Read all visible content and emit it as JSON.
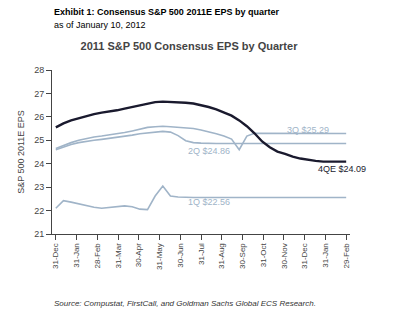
{
  "chart_data": {
    "type": "line",
    "exhibit_title": "Exhibit 1: Consensus S&P 500 2011E EPS by quarter",
    "subtitle": "as of January 10, 2012",
    "title": "2011 S&P 500 Consensus EPS by Quarter",
    "source": "Source: Compustat, FirstCall, and Goldman Sachs Global ECS Research.",
    "ylabel": "S&P 500 2011E EPS",
    "x": [
      0,
      1,
      2,
      3,
      4,
      5,
      6,
      7,
      8,
      9,
      10,
      11,
      12,
      13,
      14,
      15,
      16,
      17,
      18,
      19,
      20,
      21,
      22,
      23,
      24,
      25,
      26,
      27,
      28,
      29,
      30,
      31,
      32,
      33,
      34,
      35,
      36,
      37,
      38
    ],
    "xlim": [
      -0.5,
      38.5
    ],
    "xticks": [
      {
        "value": 0,
        "label": "31-Dec"
      },
      {
        "value": 2.7142857142857144,
        "label": "31-Jan"
      },
      {
        "value": 5.428571428571429,
        "label": "28-Feb"
      },
      {
        "value": 8.142857142857142,
        "label": "31-Mar"
      },
      {
        "value": 10.857142857142858,
        "label": "30-Apr"
      },
      {
        "value": 13.571428571428571,
        "label": "31-May"
      },
      {
        "value": 16.285714285714285,
        "label": "30-Jun"
      },
      {
        "value": 19.0,
        "label": "31-Jul"
      },
      {
        "value": 21.714285714285715,
        "label": "31-Aug"
      },
      {
        "value": 24.428571428571427,
        "label": "30-Sep"
      },
      {
        "value": 27.142857142857142,
        "label": "31-Oct"
      },
      {
        "value": 29.857142857142858,
        "label": "30-Nov"
      },
      {
        "value": 32.57142857142857,
        "label": "31-Dec"
      },
      {
        "value": 35.285714285714285,
        "label": "31-Jan"
      },
      {
        "value": 38.0,
        "label": "29-Feb"
      }
    ],
    "ylim": [
      21,
      28
    ],
    "yticks": [
      21,
      22,
      23,
      24,
      25,
      26,
      27,
      28
    ],
    "grid": false,
    "series": [
      {
        "color": "#a0b4c8",
        "values": [
          22.1,
          22.42,
          22.36,
          22.28,
          22.2,
          22.14,
          22.1,
          22.14,
          22.18,
          22.2,
          22.16,
          22.06,
          22.04,
          22.62,
          23.05,
          22.62,
          22.58,
          22.56,
          22.56,
          22.56,
          22.56,
          22.56,
          22.56,
          22.56,
          22.56,
          22.56,
          22.56,
          22.56,
          22.56,
          22.56,
          22.56,
          22.56,
          22.56,
          22.56,
          22.56,
          22.56,
          22.56,
          22.56,
          22.56
        ]
      },
      {
        "color": "#a0b4c8",
        "values": [
          24.6,
          24.72,
          24.82,
          24.9,
          24.96,
          25.0,
          25.04,
          25.08,
          25.12,
          25.16,
          25.22,
          25.28,
          25.32,
          25.35,
          25.38,
          25.35,
          25.2,
          24.98,
          24.9,
          24.88,
          24.86,
          24.86,
          24.86,
          24.86,
          24.86,
          24.86,
          24.86,
          24.86,
          24.86,
          24.86,
          24.86,
          24.86,
          24.86,
          24.86,
          24.86,
          24.86,
          24.86,
          24.86,
          24.86
        ]
      },
      {
        "color": "#a0b4c8",
        "values": [
          24.65,
          24.78,
          24.9,
          25.0,
          25.08,
          25.14,
          25.18,
          25.22,
          25.28,
          25.33,
          25.4,
          25.48,
          25.55,
          25.58,
          25.6,
          25.58,
          25.56,
          25.54,
          25.5,
          25.44,
          25.37,
          25.28,
          25.18,
          25.05,
          24.6,
          25.18,
          25.3,
          25.3,
          25.3,
          25.29,
          25.29,
          25.29,
          25.29,
          25.29,
          25.29,
          25.29,
          25.29,
          25.29,
          25.29
        ]
      },
      {
        "color": "#1a1a2e",
        "values": [
          25.55,
          25.72,
          25.85,
          25.95,
          26.05,
          26.12,
          26.18,
          26.22,
          26.28,
          26.35,
          26.42,
          26.5,
          26.58,
          26.63,
          26.65,
          26.64,
          26.62,
          26.6,
          26.57,
          26.5,
          26.42,
          26.32,
          26.2,
          26.05,
          25.85,
          25.6,
          25.3,
          24.95,
          24.7,
          24.52,
          24.42,
          24.3,
          24.22,
          24.16,
          24.12,
          24.09,
          24.09,
          24.09,
          24.09
        ]
      }
    ],
    "annotations": [
      {
        "text": "3Q $25.29",
        "x": 30,
        "y": 25.42,
        "color": "#a0b4c8"
      },
      {
        "text": "2Q $24.86",
        "x": 17,
        "y": 24.55,
        "color": "#a0b4c8"
      },
      {
        "text": "1Q $22.56",
        "x": 17,
        "y": 22.35,
        "color": "#a0b4c8"
      },
      {
        "text": "4QE $24.09",
        "x": 34,
        "y": 23.78,
        "color": "#1a1a2e"
      }
    ]
  }
}
